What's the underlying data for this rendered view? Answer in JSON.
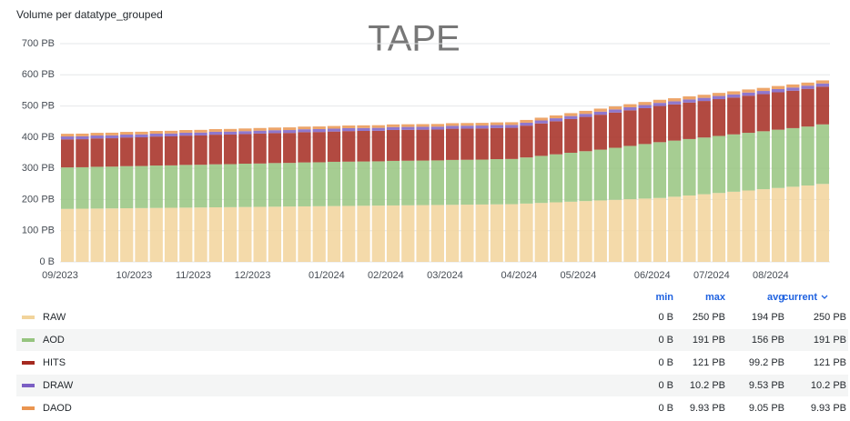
{
  "chart_data": {
    "type": "stacked_bar",
    "title": "Volume per datatype_grouped",
    "annotation": "TAPE",
    "categories": [
      "09/2023",
      null,
      null,
      null,
      null,
      "10/2023",
      null,
      null,
      null,
      "11/2023",
      null,
      null,
      null,
      "12/2023",
      null,
      null,
      null,
      null,
      "01/2024",
      null,
      null,
      null,
      "02/2024",
      null,
      null,
      null,
      "03/2024",
      null,
      null,
      null,
      null,
      "04/2024",
      null,
      null,
      null,
      "05/2024",
      null,
      null,
      null,
      null,
      "06/2024",
      null,
      null,
      null,
      "07/2024",
      null,
      null,
      null,
      "08/2024",
      null,
      null,
      null
    ],
    "ylim": [
      0,
      700
    ],
    "yticks": [
      {
        "value": 0,
        "label": "0 B"
      },
      {
        "value": 100,
        "label": "100 PB"
      },
      {
        "value": 200,
        "label": "200 PB"
      },
      {
        "value": 300,
        "label": "300 PB"
      },
      {
        "value": 400,
        "label": "400 PB"
      },
      {
        "value": 500,
        "label": "500 PB"
      },
      {
        "value": 600,
        "label": "600 PB"
      },
      {
        "value": 700,
        "label": "700 PB"
      }
    ],
    "grid": true,
    "legend_columns": [
      "min",
      "max",
      "avg",
      "current"
    ],
    "series": [
      {
        "name": "RAW",
        "color": "#f2d49b",
        "stats": [
          "0 B",
          "250 PB",
          "194 PB",
          "250 PB"
        ],
        "values": [
          170,
          170.5,
          171,
          171.5,
          172,
          172.5,
          173,
          173.5,
          174,
          174.5,
          175,
          175.5,
          176,
          176.5,
          177,
          177.5,
          178,
          178.5,
          179,
          179.5,
          180,
          180.5,
          181,
          181.5,
          182,
          182.5,
          183,
          183.5,
          184,
          184.5,
          185,
          187,
          189,
          191,
          193,
          195,
          197,
          199,
          201,
          203,
          205,
          209,
          213,
          217,
          221,
          225,
          229,
          233,
          237,
          241,
          245,
          250
        ]
      },
      {
        "name": "AOD",
        "color": "#96c47f",
        "stats": [
          "0 B",
          "191 PB",
          "156 PB",
          "191 PB"
        ],
        "values": [
          133,
          133,
          134,
          134,
          135,
          135,
          136,
          136,
          137,
          137,
          138,
          138,
          139,
          139,
          140,
          140,
          141,
          141,
          142,
          142,
          142,
          142,
          143,
          143,
          143,
          143,
          144,
          144,
          144,
          145,
          145,
          148,
          151,
          154,
          157,
          160,
          163,
          167,
          171,
          175,
          179,
          180,
          181,
          182,
          183,
          184,
          185,
          186,
          187,
          188,
          189,
          191
        ]
      },
      {
        "name": "HITS",
        "color": "#a52a20",
        "stats": [
          "0 B",
          "121 PB",
          "99.2 PB",
          "121 PB"
        ],
        "values": [
          90,
          90,
          91,
          91,
          92,
          92,
          93,
          93,
          94,
          94,
          95,
          95,
          95,
          96,
          96,
          96,
          97,
          97,
          97,
          98,
          98,
          98,
          99,
          99,
          99,
          99,
          100,
          100,
          100,
          100,
          100,
          102,
          104,
          106,
          108,
          110,
          112,
          113,
          114,
          115,
          116,
          116,
          117,
          117,
          118,
          118,
          119,
          119,
          120,
          120,
          121,
          121
        ]
      },
      {
        "name": "DRAW",
        "color": "#7b5fc4",
        "stats": [
          "0 B",
          "10.2 PB",
          "9.53 PB",
          "10.2 PB"
        ],
        "values": [
          9.3,
          9.3,
          9.3,
          9.3,
          9.3,
          9.3,
          9.3,
          9.3,
          9.3,
          9.3,
          9.3,
          9.3,
          9.3,
          9.3,
          9.3,
          9.3,
          9.3,
          9.3,
          9.3,
          9.3,
          9.3,
          9.3,
          9.3,
          9.3,
          9.3,
          9.3,
          9.3,
          9.3,
          9.3,
          9.3,
          9.3,
          9.4,
          9.5,
          9.6,
          9.7,
          9.8,
          9.9,
          9.9,
          10,
          10,
          10,
          10,
          10,
          10.1,
          10.1,
          10.1,
          10.1,
          10.2,
          10.2,
          10.2,
          10.2,
          10.2
        ]
      },
      {
        "name": "DAOD",
        "color": "#ea9550",
        "stats": [
          "0 B",
          "9.93 PB",
          "9.05 PB",
          "9.93 PB"
        ],
        "values": [
          8.6,
          8.6,
          8.6,
          8.6,
          8.6,
          8.6,
          8.6,
          8.6,
          8.6,
          8.6,
          8.6,
          8.6,
          8.6,
          8.6,
          8.6,
          8.6,
          8.6,
          8.6,
          8.6,
          8.6,
          8.6,
          8.6,
          8.6,
          8.6,
          8.6,
          8.6,
          8.6,
          8.6,
          8.6,
          8.6,
          8.6,
          8.8,
          9,
          9.2,
          9.4,
          9.6,
          9.7,
          9.8,
          9.8,
          9.9,
          9.9,
          9.9,
          9.9,
          9.9,
          9.9,
          9.9,
          9.9,
          9.9,
          9.9,
          9.9,
          9.9,
          9.93
        ]
      }
    ]
  }
}
